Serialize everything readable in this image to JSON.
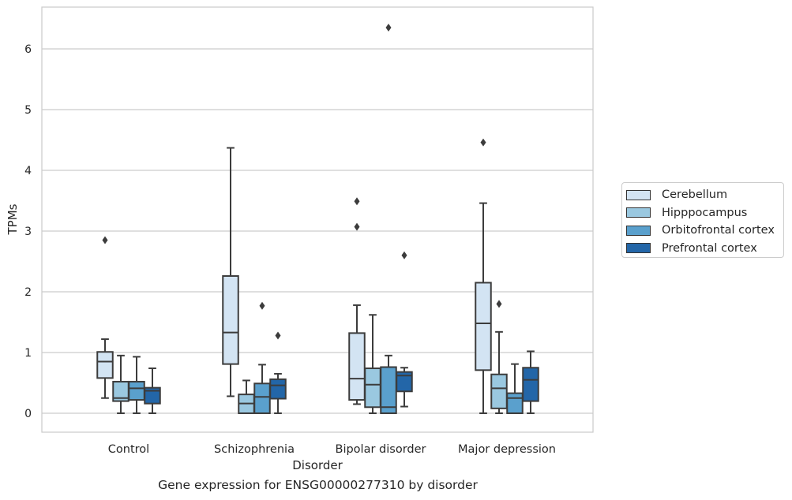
{
  "caption": "Gene expression for ENSG00000277310 by disorder",
  "chart_data": {
    "type": "boxplot",
    "title": "",
    "xlabel": "Disorder",
    "ylabel": "TPMs",
    "ylim": [
      -0.3,
      6.7
    ],
    "yticks": [
      0,
      1,
      2,
      3,
      4,
      5,
      6
    ],
    "categories": [
      "Control",
      "Schizophrenia",
      "Bipolar disorder",
      "Major depression"
    ],
    "grid": "horizontal",
    "legend_position": "right",
    "series": [
      {
        "name": "Cerebellum",
        "color": "#d3e4f3",
        "boxes": [
          {
            "whislo": 0.25,
            "q1": 0.58,
            "median": 0.85,
            "q3": 1.01,
            "whishi": 1.22,
            "fliers": [
              2.85
            ]
          },
          {
            "whislo": 0.28,
            "q1": 0.81,
            "median": 1.33,
            "q3": 2.26,
            "whishi": 4.37,
            "fliers": []
          },
          {
            "whislo": 0.15,
            "q1": 0.22,
            "median": 0.57,
            "q3": 1.32,
            "whishi": 1.78,
            "fliers": [
              3.49,
              3.07
            ]
          },
          {
            "whislo": 0.0,
            "q1": 0.71,
            "median": 1.48,
            "q3": 2.15,
            "whishi": 3.46,
            "fliers": [
              4.46
            ]
          }
        ]
      },
      {
        "name": "Hipppocampus",
        "color": "#9ac8e0",
        "boxes": [
          {
            "whislo": 0.0,
            "q1": 0.2,
            "median": 0.25,
            "q3": 0.52,
            "whishi": 0.95,
            "fliers": []
          },
          {
            "whislo": 0.0,
            "q1": 0.0,
            "median": 0.16,
            "q3": 0.31,
            "whishi": 0.54,
            "fliers": []
          },
          {
            "whislo": 0.0,
            "q1": 0.1,
            "median": 0.47,
            "q3": 0.74,
            "whishi": 1.62,
            "fliers": []
          },
          {
            "whislo": 0.0,
            "q1": 0.08,
            "median": 0.41,
            "q3": 0.64,
            "whishi": 1.34,
            "fliers": [
              1.8
            ]
          }
        ]
      },
      {
        "name": "Orbitofrontal cortex",
        "color": "#5aa0cd",
        "boxes": [
          {
            "whislo": 0.0,
            "q1": 0.22,
            "median": 0.41,
            "q3": 0.52,
            "whishi": 0.93,
            "fliers": []
          },
          {
            "whislo": 0.0,
            "q1": 0.0,
            "median": 0.27,
            "q3": 0.49,
            "whishi": 0.8,
            "fliers": [
              1.77
            ]
          },
          {
            "whislo": 0.0,
            "q1": 0.0,
            "median": 0.1,
            "q3": 0.76,
            "whishi": 0.95,
            "fliers": [
              6.35
            ]
          },
          {
            "whislo": 0.0,
            "q1": 0.0,
            "median": 0.25,
            "q3": 0.33,
            "whishi": 0.81,
            "fliers": []
          }
        ]
      },
      {
        "name": "Prefrontal cortex",
        "color": "#2366a8",
        "boxes": [
          {
            "whislo": 0.0,
            "q1": 0.16,
            "median": 0.37,
            "q3": 0.42,
            "whishi": 0.74,
            "fliers": []
          },
          {
            "whislo": 0.0,
            "q1": 0.24,
            "median": 0.46,
            "q3": 0.56,
            "whishi": 0.65,
            "fliers": [
              1.28
            ]
          },
          {
            "whislo": 0.11,
            "q1": 0.36,
            "median": 0.62,
            "q3": 0.68,
            "whishi": 0.75,
            "fliers": [
              2.6
            ]
          },
          {
            "whislo": 0.0,
            "q1": 0.2,
            "median": 0.55,
            "q3": 0.75,
            "whishi": 1.02,
            "fliers": []
          }
        ]
      }
    ]
  }
}
